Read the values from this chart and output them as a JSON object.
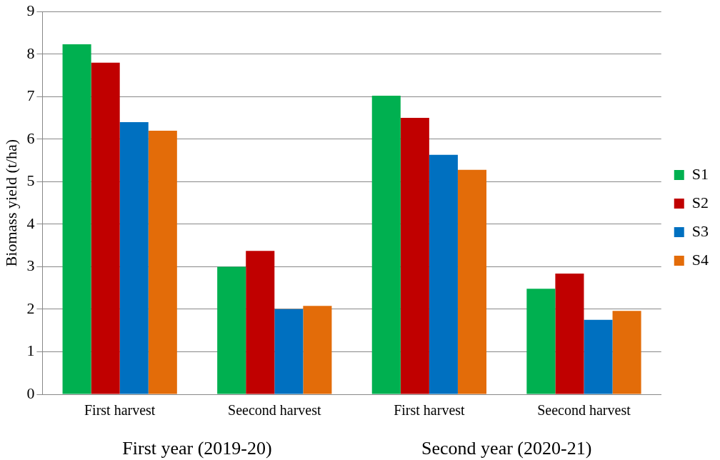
{
  "chart_data": {
    "type": "bar",
    "ylabel": "Biomass yield (t/ha)",
    "categories": [
      "First harvest",
      "Seecond harvest",
      "First harvest",
      "Seecond harvest"
    ],
    "series": [
      {
        "name": "S1",
        "color": "#00b050",
        "values": [
          8.23,
          3.0,
          7.02,
          2.48
        ]
      },
      {
        "name": "S2",
        "color": "#c00000",
        "values": [
          7.8,
          3.37,
          6.5,
          2.84
        ]
      },
      {
        "name": "S3",
        "color": "#0070c0",
        "values": [
          6.4,
          2.0,
          5.63,
          1.75
        ]
      },
      {
        "name": "S4",
        "color": "#e36c09",
        "values": [
          6.2,
          2.08,
          5.28,
          1.96
        ]
      }
    ],
    "ylim": [
      0,
      9
    ],
    "yticks": [
      0,
      1,
      2,
      3,
      4,
      5,
      6,
      7,
      8,
      9
    ],
    "grid": "y",
    "legend": "right",
    "annotations": [
      "First year (2019-20)",
      "Second year (2020-21)"
    ]
  }
}
